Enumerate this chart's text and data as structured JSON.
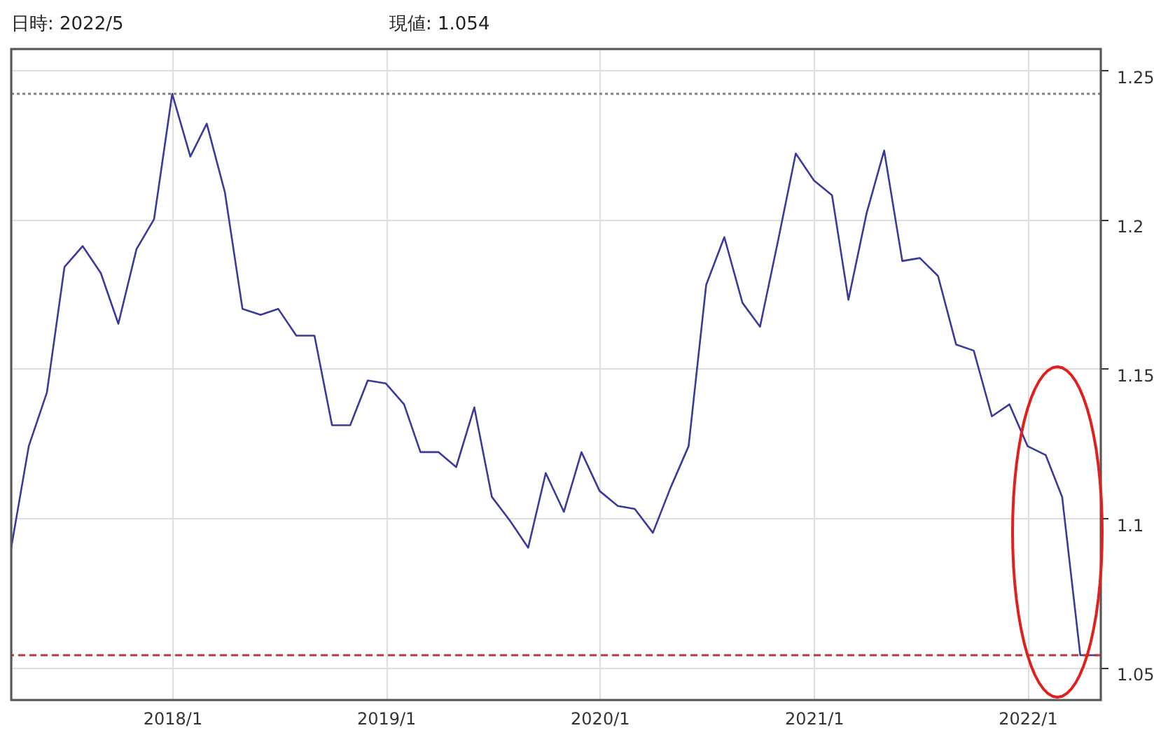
{
  "chart_data": {
    "type": "line",
    "annotations": [
      "日時: 2022/5",
      "現値: 1.054"
    ],
    "x": [
      "2017-04",
      "2017-05",
      "2017-06",
      "2017-07",
      "2017-08",
      "2017-09",
      "2017-10",
      "2017-11",
      "2017-12",
      "2018-01",
      "2018-02",
      "2018-03",
      "2018-04",
      "2018-05",
      "2018-06",
      "2018-07",
      "2018-08",
      "2018-09",
      "2018-10",
      "2018-11",
      "2018-12",
      "2019-01",
      "2019-02",
      "2019-03",
      "2019-04",
      "2019-05",
      "2019-06",
      "2019-07",
      "2019-08",
      "2019-09",
      "2019-10",
      "2019-11",
      "2019-12",
      "2020-01",
      "2020-02",
      "2020-03",
      "2020-04",
      "2020-05",
      "2020-06",
      "2020-07",
      "2020-08",
      "2020-09",
      "2020-10",
      "2020-11",
      "2020-12",
      "2021-01",
      "2021-02",
      "2021-03",
      "2021-04",
      "2021-05",
      "2021-06",
      "2021-07",
      "2021-08",
      "2021-09",
      "2021-10",
      "2021-11",
      "2021-12",
      "2022-01",
      "2022-02",
      "2022-03",
      "2022-04",
      "2022-05"
    ],
    "series": [
      {
        "color": "#3a3a9a",
        "values": [
          1.09,
          1.124,
          1.142,
          1.184,
          1.191,
          1.182,
          1.165,
          1.19,
          1.2,
          1.242,
          1.221,
          1.232,
          1.209,
          1.17,
          1.168,
          1.17,
          1.161,
          1.161,
          1.131,
          1.131,
          1.146,
          1.145,
          1.138,
          1.122,
          1.122,
          1.117,
          1.137,
          1.107,
          1.099,
          1.09,
          1.115,
          1.102,
          1.122,
          1.109,
          1.104,
          1.103,
          1.095,
          1.11,
          1.124,
          1.178,
          1.194,
          1.172,
          1.164,
          1.193,
          1.222,
          1.213,
          1.208,
          1.173,
          1.202,
          1.223,
          1.186,
          1.187,
          1.181,
          1.158,
          1.156,
          1.134,
          1.138,
          1.124,
          1.121,
          1.107,
          1.054,
          1.054
        ]
      }
    ],
    "xlim": [
      "2017-04-01",
      "2022-05-06"
    ],
    "xticks": [
      {
        "value": "2018-01",
        "label": "2018/1"
      },
      {
        "value": "2019-01",
        "label": "2019/1"
      },
      {
        "value": "2020-01",
        "label": "2020/1"
      },
      {
        "value": "2021-01",
        "label": "2021/1"
      },
      {
        "value": "2022-01",
        "label": "2022/1"
      }
    ],
    "ylim": [
      1.039,
      1.257
    ],
    "yticks": [
      1.05,
      1.1,
      1.15,
      1.2,
      1.25
    ],
    "grid": true,
    "marker": "none",
    "line_style": "solid",
    "ref_lines": [
      {
        "axis": "y",
        "value": 1.242,
        "color": "#808080",
        "line_style": "dotted"
      },
      {
        "axis": "y",
        "value": 1.054,
        "color": "#b03a3a",
        "line_style": "dashed"
      }
    ]
  }
}
